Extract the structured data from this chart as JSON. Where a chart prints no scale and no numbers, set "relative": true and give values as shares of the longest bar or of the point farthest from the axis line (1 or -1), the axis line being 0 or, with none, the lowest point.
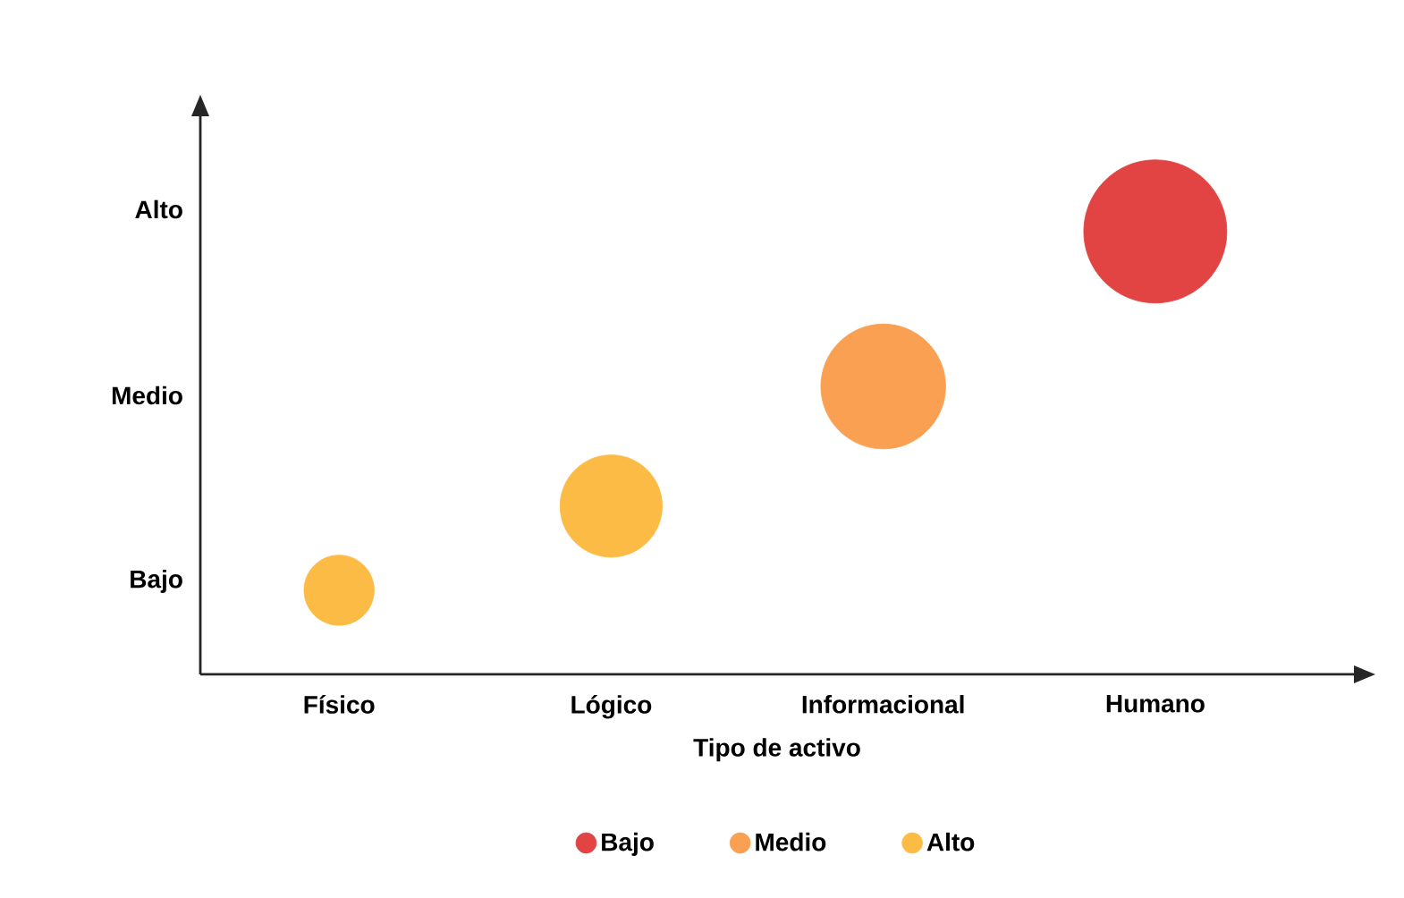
{
  "chart_data": {
    "type": "bubble",
    "xlabel": "Tipo de activo",
    "categories": [
      "Físico",
      "Lógico",
      "Informacional",
      "Humano"
    ],
    "relative": true,
    "annotations": [
      "Bajo",
      "Medio",
      "Alto"
    ],
    "legend": "bottom",
    "series": [
      {
        "name": "Bajo",
        "color": "#e24343",
        "values": [
          null,
          null,
          null,
          1
        ],
        "sizes": [
          null,
          null,
          null,
          1
        ]
      },
      {
        "name": "Medio",
        "color": "#f9a052",
        "values": [
          null,
          null,
          0.65,
          null
        ],
        "sizes": [
          null,
          null,
          0.76,
          null
        ]
      },
      {
        "name": "Alto",
        "color": "#fbbb45",
        "values": [
          0.19,
          0.38,
          null,
          null
        ],
        "sizes": [
          0.24,
          0.51,
          null,
          null
        ]
      }
    ]
  }
}
